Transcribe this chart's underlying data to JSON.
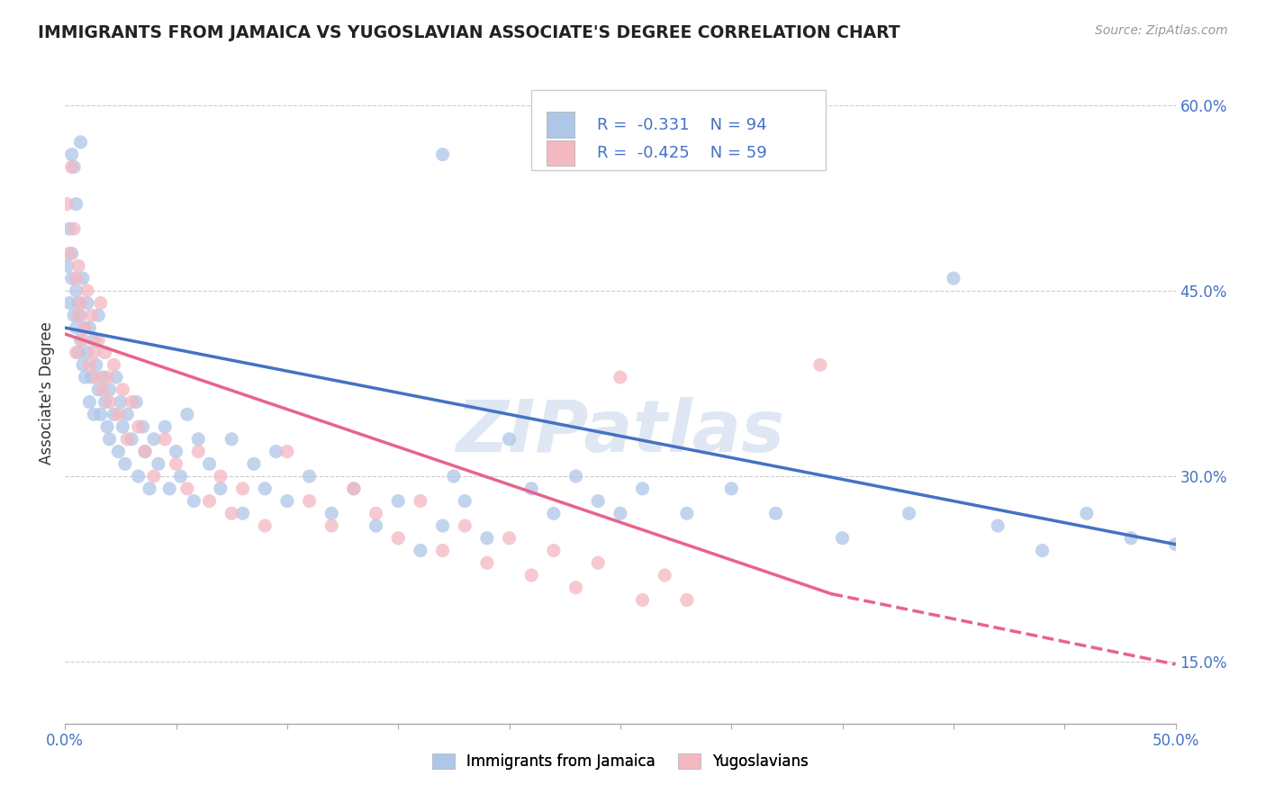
{
  "title": "IMMIGRANTS FROM JAMAICA VS YUGOSLAVIAN ASSOCIATE'S DEGREE CORRELATION CHART",
  "source": "Source: ZipAtlas.com",
  "ylabel": "Associate's Degree",
  "xlim": [
    0.0,
    0.5
  ],
  "ylim": [
    0.1,
    0.635
  ],
  "xticks": [
    0.0,
    0.05,
    0.1,
    0.15,
    0.2,
    0.25,
    0.3,
    0.35,
    0.4,
    0.45,
    0.5
  ],
  "yticks": [
    0.15,
    0.3,
    0.45,
    0.6
  ],
  "yticklabels": [
    "15.0%",
    "30.0%",
    "45.0%",
    "60.0%"
  ],
  "blue_color": "#aec6e8",
  "pink_color": "#f4b8c1",
  "blue_line_color": "#4472c4",
  "pink_line_color": "#e8638a",
  "grid_color": "#cccccc",
  "background_color": "#ffffff",
  "watermark": "ZIPatlas",
  "legend_R_blue": "R =  -0.331",
  "legend_N_blue": "N = 94",
  "legend_R_pink": "R =  -0.425",
  "legend_N_pink": "N = 59",
  "legend_label_blue": "Immigrants from Jamaica",
  "legend_label_pink": "Yugoslavians",
  "blue_scatter": [
    [
      0.001,
      0.47
    ],
    [
      0.002,
      0.5
    ],
    [
      0.002,
      0.44
    ],
    [
      0.003,
      0.48
    ],
    [
      0.003,
      0.46
    ],
    [
      0.004,
      0.55
    ],
    [
      0.004,
      0.43
    ],
    [
      0.005,
      0.45
    ],
    [
      0.005,
      0.42
    ],
    [
      0.006,
      0.44
    ],
    [
      0.006,
      0.4
    ],
    [
      0.007,
      0.57
    ],
    [
      0.007,
      0.43
    ],
    [
      0.007,
      0.41
    ],
    [
      0.008,
      0.46
    ],
    [
      0.008,
      0.39
    ],
    [
      0.009,
      0.42
    ],
    [
      0.009,
      0.38
    ],
    [
      0.01,
      0.44
    ],
    [
      0.01,
      0.4
    ],
    [
      0.011,
      0.36
    ],
    [
      0.011,
      0.42
    ],
    [
      0.012,
      0.38
    ],
    [
      0.013,
      0.41
    ],
    [
      0.013,
      0.35
    ],
    [
      0.014,
      0.39
    ],
    [
      0.015,
      0.37
    ],
    [
      0.015,
      0.43
    ],
    [
      0.016,
      0.35
    ],
    [
      0.017,
      0.38
    ],
    [
      0.018,
      0.36
    ],
    [
      0.019,
      0.34
    ],
    [
      0.02,
      0.37
    ],
    [
      0.02,
      0.33
    ],
    [
      0.022,
      0.35
    ],
    [
      0.023,
      0.38
    ],
    [
      0.024,
      0.32
    ],
    [
      0.025,
      0.36
    ],
    [
      0.026,
      0.34
    ],
    [
      0.027,
      0.31
    ],
    [
      0.028,
      0.35
    ],
    [
      0.03,
      0.33
    ],
    [
      0.032,
      0.36
    ],
    [
      0.033,
      0.3
    ],
    [
      0.035,
      0.34
    ],
    [
      0.036,
      0.32
    ],
    [
      0.038,
      0.29
    ],
    [
      0.04,
      0.33
    ],
    [
      0.042,
      0.31
    ],
    [
      0.045,
      0.34
    ],
    [
      0.047,
      0.29
    ],
    [
      0.05,
      0.32
    ],
    [
      0.052,
      0.3
    ],
    [
      0.055,
      0.35
    ],
    [
      0.058,
      0.28
    ],
    [
      0.06,
      0.33
    ],
    [
      0.065,
      0.31
    ],
    [
      0.07,
      0.29
    ],
    [
      0.075,
      0.33
    ],
    [
      0.08,
      0.27
    ],
    [
      0.085,
      0.31
    ],
    [
      0.09,
      0.29
    ],
    [
      0.095,
      0.32
    ],
    [
      0.1,
      0.28
    ],
    [
      0.11,
      0.3
    ],
    [
      0.12,
      0.27
    ],
    [
      0.13,
      0.29
    ],
    [
      0.14,
      0.26
    ],
    [
      0.15,
      0.28
    ],
    [
      0.16,
      0.24
    ],
    [
      0.17,
      0.26
    ],
    [
      0.175,
      0.3
    ],
    [
      0.18,
      0.28
    ],
    [
      0.19,
      0.25
    ],
    [
      0.2,
      0.33
    ],
    [
      0.21,
      0.29
    ],
    [
      0.22,
      0.27
    ],
    [
      0.23,
      0.3
    ],
    [
      0.24,
      0.28
    ],
    [
      0.25,
      0.27
    ],
    [
      0.26,
      0.29
    ],
    [
      0.28,
      0.27
    ],
    [
      0.3,
      0.29
    ],
    [
      0.32,
      0.27
    ],
    [
      0.35,
      0.25
    ],
    [
      0.38,
      0.27
    ],
    [
      0.4,
      0.46
    ],
    [
      0.42,
      0.26
    ],
    [
      0.44,
      0.24
    ],
    [
      0.46,
      0.27
    ],
    [
      0.48,
      0.25
    ],
    [
      0.5,
      0.245
    ],
    [
      0.003,
      0.56
    ],
    [
      0.005,
      0.52
    ],
    [
      0.17,
      0.56
    ]
  ],
  "pink_scatter": [
    [
      0.001,
      0.52
    ],
    [
      0.002,
      0.48
    ],
    [
      0.003,
      0.55
    ],
    [
      0.004,
      0.5
    ],
    [
      0.005,
      0.46
    ],
    [
      0.006,
      0.43
    ],
    [
      0.006,
      0.47
    ],
    [
      0.007,
      0.44
    ],
    [
      0.008,
      0.41
    ],
    [
      0.009,
      0.42
    ],
    [
      0.01,
      0.45
    ],
    [
      0.011,
      0.39
    ],
    [
      0.012,
      0.43
    ],
    [
      0.013,
      0.4
    ],
    [
      0.014,
      0.38
    ],
    [
      0.015,
      0.41
    ],
    [
      0.016,
      0.44
    ],
    [
      0.017,
      0.37
    ],
    [
      0.018,
      0.4
    ],
    [
      0.019,
      0.38
    ],
    [
      0.02,
      0.36
    ],
    [
      0.022,
      0.39
    ],
    [
      0.024,
      0.35
    ],
    [
      0.026,
      0.37
    ],
    [
      0.028,
      0.33
    ],
    [
      0.03,
      0.36
    ],
    [
      0.033,
      0.34
    ],
    [
      0.036,
      0.32
    ],
    [
      0.04,
      0.3
    ],
    [
      0.045,
      0.33
    ],
    [
      0.05,
      0.31
    ],
    [
      0.055,
      0.29
    ],
    [
      0.06,
      0.32
    ],
    [
      0.065,
      0.28
    ],
    [
      0.07,
      0.3
    ],
    [
      0.075,
      0.27
    ],
    [
      0.08,
      0.29
    ],
    [
      0.09,
      0.26
    ],
    [
      0.1,
      0.32
    ],
    [
      0.11,
      0.28
    ],
    [
      0.12,
      0.26
    ],
    [
      0.13,
      0.29
    ],
    [
      0.14,
      0.27
    ],
    [
      0.15,
      0.25
    ],
    [
      0.16,
      0.28
    ],
    [
      0.17,
      0.24
    ],
    [
      0.18,
      0.26
    ],
    [
      0.19,
      0.23
    ],
    [
      0.2,
      0.25
    ],
    [
      0.21,
      0.22
    ],
    [
      0.22,
      0.24
    ],
    [
      0.23,
      0.21
    ],
    [
      0.24,
      0.23
    ],
    [
      0.25,
      0.38
    ],
    [
      0.26,
      0.2
    ],
    [
      0.27,
      0.22
    ],
    [
      0.28,
      0.2
    ],
    [
      0.34,
      0.39
    ],
    [
      0.005,
      0.4
    ]
  ],
  "blue_trendline": {
    "x_start": 0.0,
    "y_start": 0.42,
    "x_end": 0.5,
    "y_end": 0.245
  },
  "pink_trendline": {
    "x_start": 0.0,
    "y_start": 0.415,
    "x_end": 0.345,
    "y_end": 0.205
  },
  "pink_trendline_dashed": {
    "x_start": 0.345,
    "y_start": 0.205,
    "x_end": 0.5,
    "y_end": 0.148
  }
}
